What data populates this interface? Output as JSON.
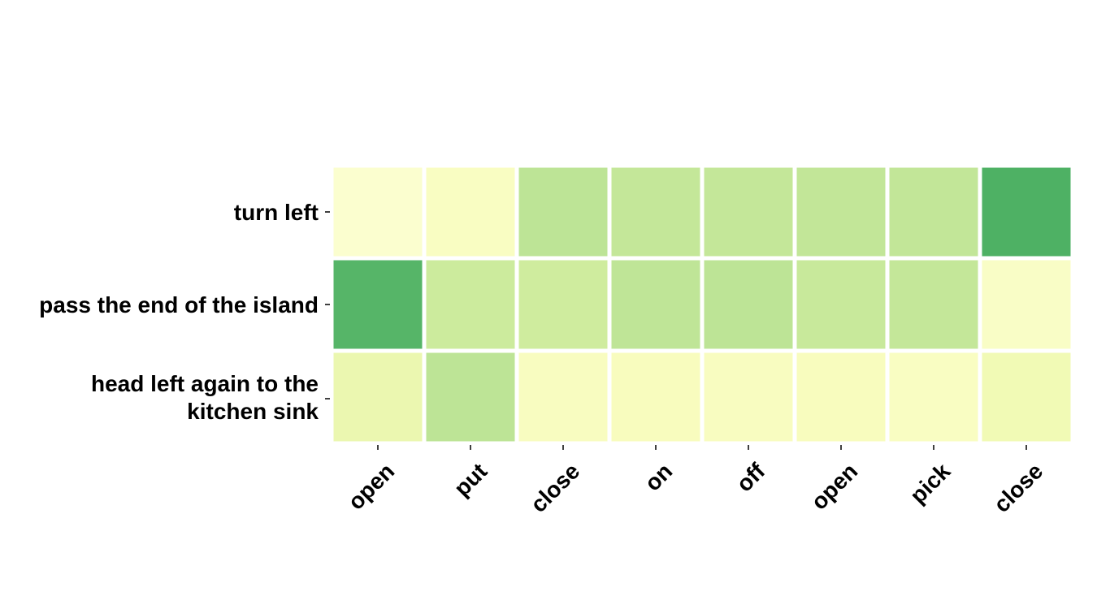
{
  "chart_data": {
    "type": "heatmap",
    "title": "",
    "xlabel": "",
    "ylabel": "",
    "rows": [
      [
        "turn left"
      ],
      [
        "pass the end of the island"
      ],
      [
        "head left again to the",
        "kitchen sink"
      ]
    ],
    "columns": [
      "open",
      "put",
      "close",
      "on",
      "off",
      "open",
      "pick",
      "close"
    ],
    "values": [
      [
        0.02,
        0.08,
        0.45,
        0.42,
        0.42,
        0.43,
        0.43,
        0.88
      ],
      [
        0.85,
        0.38,
        0.37,
        0.44,
        0.45,
        0.4,
        0.42,
        0.06
      ],
      [
        0.2,
        0.45,
        0.09,
        0.1,
        0.09,
        0.1,
        0.08,
        0.16
      ]
    ],
    "colormap": "YlGn",
    "colorbar": false,
    "grid": false
  }
}
